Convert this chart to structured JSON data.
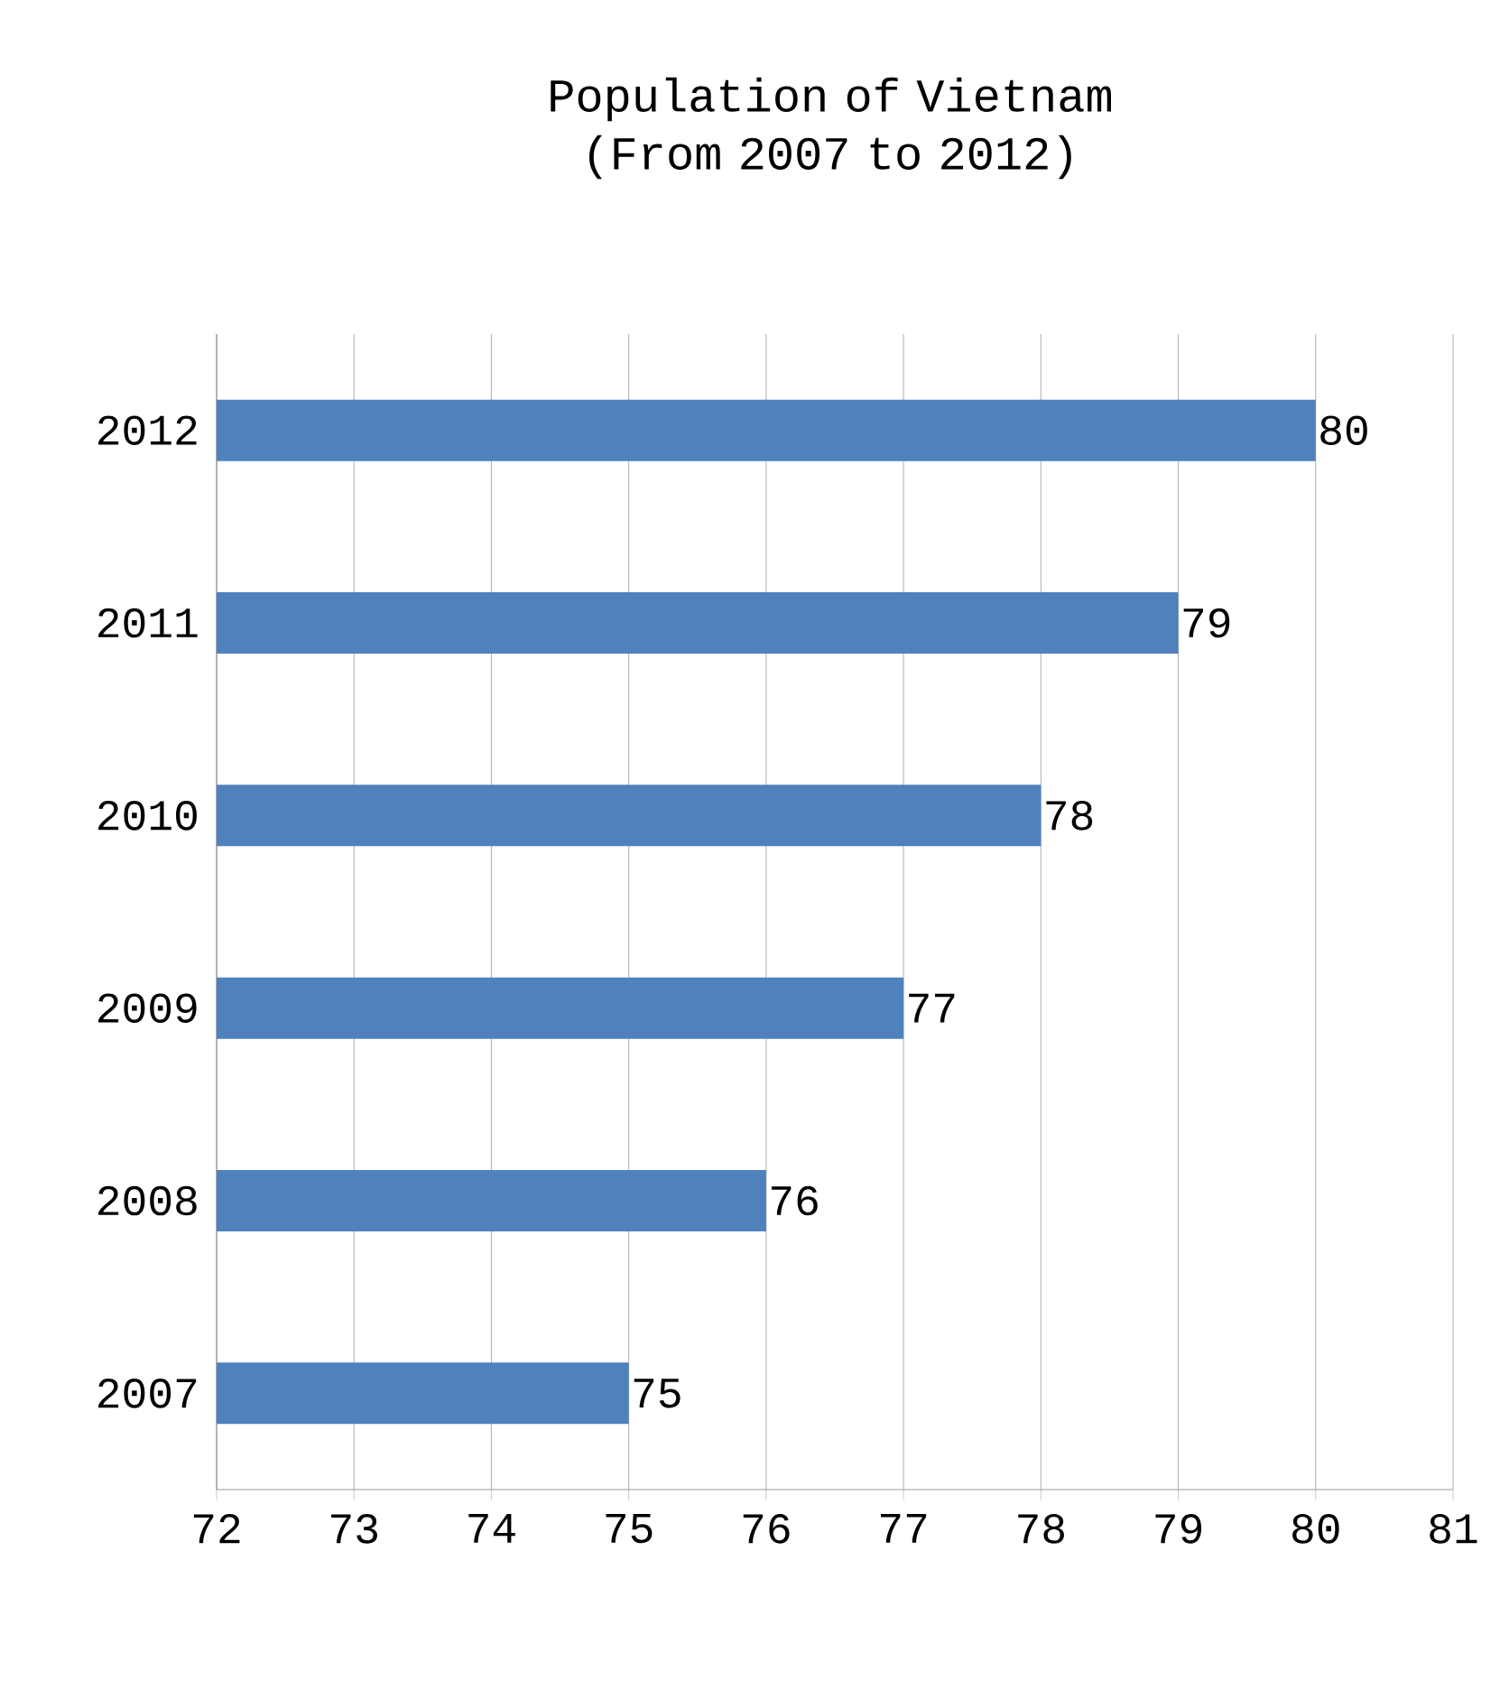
{
  "chart_data": {
    "type": "bar",
    "orientation": "horizontal",
    "title": "Population of Vietnam (From 2007 to 2012)",
    "categories": [
      "2012",
      "2011",
      "2010",
      "2009",
      "2008",
      "2007"
    ],
    "values": [
      80,
      79,
      78,
      77,
      76,
      75
    ],
    "color": "#4f81bd",
    "data_labels": true,
    "grid": "x",
    "xlim": [
      72,
      81
    ],
    "xticks": [
      72,
      73,
      74,
      75,
      76,
      77,
      78,
      79,
      80,
      81
    ]
  }
}
